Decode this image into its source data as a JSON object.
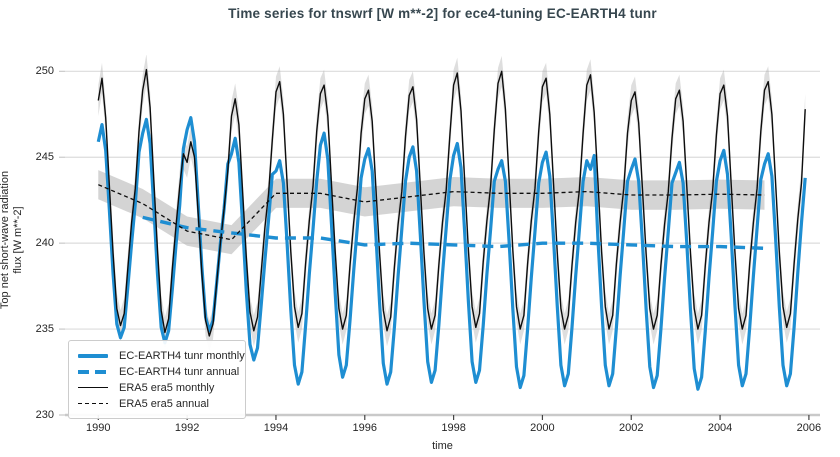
{
  "chart_data": {
    "type": "line",
    "title": "Time series for tnswrf [W m**-2] for ece4-tuning EC-EARTH4 tunr",
    "xlabel": "time",
    "ylabel": "Top net short-wave radiation flux [W m**-2]",
    "ylabel_lines": [
      "Top net short-wave radiation",
      "flux [W m**-2]"
    ],
    "x_ticks": [
      1990,
      1992,
      1994,
      1996,
      1998,
      2000,
      2002,
      2004,
      2006
    ],
    "y_ticks": [
      230,
      235,
      240,
      245,
      250
    ],
    "xlim": [
      1989.25,
      2006.25
    ],
    "ylim": [
      230,
      250.95
    ],
    "grid": "horizontal-only",
    "legend_position": "lower-left",
    "colors": {
      "ec_earth": "#1e8ed2",
      "era5": "#0d0d0d",
      "band": "#a9a9a9",
      "grid": "#dcdcdc",
      "spine": "#c9c9c9",
      "title": "#37474f",
      "tick_label": "#262626"
    },
    "series": [
      {
        "name": "EC-EARTH4 tunr monthly",
        "style": "solid",
        "color_key": "ec_earth",
        "width": 3.2,
        "cadence": "monthly",
        "start_year": 1990,
        "values_by_year": [
          [
            245.9,
            246.9,
            245.4,
            241.9,
            238.2,
            235.3,
            234.5,
            235.1,
            237.5,
            240.0,
            242.3,
            245.3
          ],
          [
            246.4,
            247.2,
            245.8,
            242.1,
            238.2,
            235.1,
            234.2,
            234.9,
            237.3,
            239.9,
            242.2,
            245.5
          ],
          [
            246.6,
            247.3,
            245.9,
            242.3,
            238.6,
            235.7,
            234.9,
            235.5,
            237.7,
            240.0,
            242.0,
            244.6
          ],
          [
            245.2,
            246.1,
            244.7,
            241.1,
            237.2,
            234.1,
            233.2,
            233.9,
            236.4,
            239.0,
            241.4,
            244.0
          ],
          [
            244.2,
            244.8,
            243.5,
            240.0,
            236.1,
            232.9,
            231.8,
            232.5,
            235.2,
            238.2,
            240.8,
            243.6
          ],
          [
            245.7,
            246.4,
            244.9,
            241.1,
            237.1,
            233.5,
            232.2,
            232.9,
            235.5,
            238.4,
            241.0,
            243.8
          ],
          [
            244.9,
            245.5,
            244.2,
            240.5,
            236.5,
            233.0,
            231.8,
            232.5,
            235.1,
            238.1,
            240.8,
            243.6
          ],
          [
            245.0,
            245.6,
            244.2,
            240.5,
            236.6,
            233.1,
            231.9,
            232.6,
            235.2,
            238.2,
            240.9,
            243.7
          ],
          [
            245.1,
            245.8,
            244.4,
            240.6,
            236.6,
            233.1,
            231.9,
            232.6,
            235.2,
            238.2,
            240.8,
            243.6
          ],
          [
            244.3,
            244.8,
            243.6,
            240.1,
            236.2,
            232.8,
            231.6,
            232.3,
            235.0,
            238.0,
            240.7,
            243.5
          ],
          [
            244.7,
            245.3,
            243.9,
            240.3,
            236.4,
            232.9,
            231.7,
            232.4,
            235.1,
            238.1,
            240.8,
            243.6
          ],
          [
            244.8,
            244.3,
            245.1,
            240.3,
            236.3,
            232.9,
            231.7,
            232.4,
            235.1,
            238.1,
            240.8,
            243.6
          ],
          [
            244.3,
            244.9,
            243.6,
            240.1,
            236.2,
            232.8,
            231.6,
            232.3,
            235.0,
            238.0,
            240.7,
            243.5
          ],
          [
            244.1,
            244.7,
            243.5,
            240.0,
            236.1,
            232.7,
            231.5,
            232.2,
            234.9,
            238.0,
            240.7,
            243.6
          ],
          [
            244.8,
            245.4,
            244.0,
            240.4,
            236.4,
            232.9,
            231.7,
            232.4,
            235.1,
            238.1,
            240.9,
            243.7
          ],
          [
            244.6,
            245.2,
            243.9,
            240.3,
            236.3,
            232.9,
            231.7,
            232.4,
            235.1,
            238.3,
            241.2,
            243.8
          ]
        ]
      },
      {
        "name": "EC-EARTH4 tunr annual",
        "style": "dashed",
        "color_key": "ec_earth",
        "width": 3.4,
        "cadence": "annual",
        "start_year": 1991,
        "values": [
          241.5,
          240.9,
          240.6,
          240.3,
          240.3,
          239.9,
          240.0,
          239.9,
          239.8,
          240.0,
          240.0,
          239.9,
          239.8,
          239.8,
          239.7
        ]
      },
      {
        "name": "ERA5 era5 monthly",
        "style": "solid",
        "color_key": "era5",
        "width": 1.4,
        "cadence": "monthly",
        "start_year": 1990,
        "band_halfwidth": 0.9,
        "values_by_year": [
          [
            248.3,
            249.6,
            247.3,
            243.3,
            239.4,
            236.2,
            235.2,
            235.9,
            238.6,
            241.2,
            243.2,
            246.5
          ],
          [
            248.9,
            250.1,
            247.9,
            243.7,
            239.6,
            236.1,
            234.8,
            235.6,
            238.5,
            241.0,
            243.3,
            245.2
          ],
          [
            244.7,
            245.9,
            245.0,
            241.7,
            238.2,
            235.5,
            234.6,
            235.3,
            237.7,
            240.0,
            242.0,
            244.2
          ],
          [
            247.4,
            248.4,
            246.9,
            243.0,
            239.2,
            236.0,
            234.9,
            235.7,
            238.3,
            240.9,
            242.9,
            246.0
          ],
          [
            248.8,
            249.4,
            247.5,
            243.5,
            239.5,
            236.3,
            235.1,
            235.9,
            238.8,
            241.3,
            243.3,
            246.5
          ],
          [
            248.7,
            249.2,
            247.4,
            243.4,
            239.5,
            236.2,
            235.0,
            235.8,
            238.7,
            241.2,
            243.2,
            246.4
          ],
          [
            248.4,
            248.9,
            247.1,
            243.2,
            239.4,
            236.1,
            234.9,
            235.7,
            238.6,
            241.1,
            243.0,
            246.2
          ],
          [
            248.6,
            249.1,
            247.2,
            243.3,
            239.4,
            236.2,
            235.0,
            235.8,
            238.7,
            241.2,
            243.1,
            246.3
          ],
          [
            249.2,
            249.9,
            247.7,
            243.6,
            239.6,
            236.3,
            235.1,
            235.9,
            238.9,
            241.3,
            243.3,
            246.6
          ],
          [
            249.3,
            250.0,
            247.8,
            243.7,
            239.6,
            236.3,
            235.0,
            235.8,
            238.8,
            241.3,
            243.2,
            246.5
          ],
          [
            249.1,
            249.6,
            247.5,
            243.5,
            239.5,
            236.2,
            235.0,
            235.8,
            238.7,
            241.2,
            243.1,
            246.4
          ],
          [
            249.2,
            249.8,
            247.6,
            243.6,
            239.5,
            236.3,
            235.0,
            235.8,
            238.8,
            241.2,
            243.2,
            246.4
          ],
          [
            248.3,
            248.8,
            247.0,
            243.2,
            239.4,
            236.2,
            235.0,
            235.8,
            238.7,
            241.1,
            243.0,
            246.1
          ],
          [
            248.4,
            248.9,
            247.1,
            243.3,
            239.4,
            236.2,
            235.0,
            235.8,
            238.7,
            241.2,
            243.1,
            246.3
          ],
          [
            248.7,
            249.2,
            247.4,
            243.4,
            239.5,
            236.2,
            235.0,
            235.8,
            238.8,
            241.2,
            243.2,
            246.5
          ],
          [
            248.9,
            249.4,
            247.5,
            243.5,
            239.5,
            236.3,
            235.1,
            235.9,
            238.8,
            241.4,
            243.5,
            247.8
          ]
        ]
      },
      {
        "name": "ERA5 era5 annual",
        "style": "dashed",
        "color_key": "era5",
        "width": 1.3,
        "cadence": "annual",
        "start_year": 1990,
        "band_halfwidth": 0.85,
        "values": [
          243.4,
          242.3,
          240.7,
          240.2,
          242.9,
          242.9,
          242.4,
          242.7,
          243.0,
          242.9,
          242.9,
          243.0,
          242.8,
          242.8,
          242.85,
          242.8
        ]
      }
    ]
  }
}
